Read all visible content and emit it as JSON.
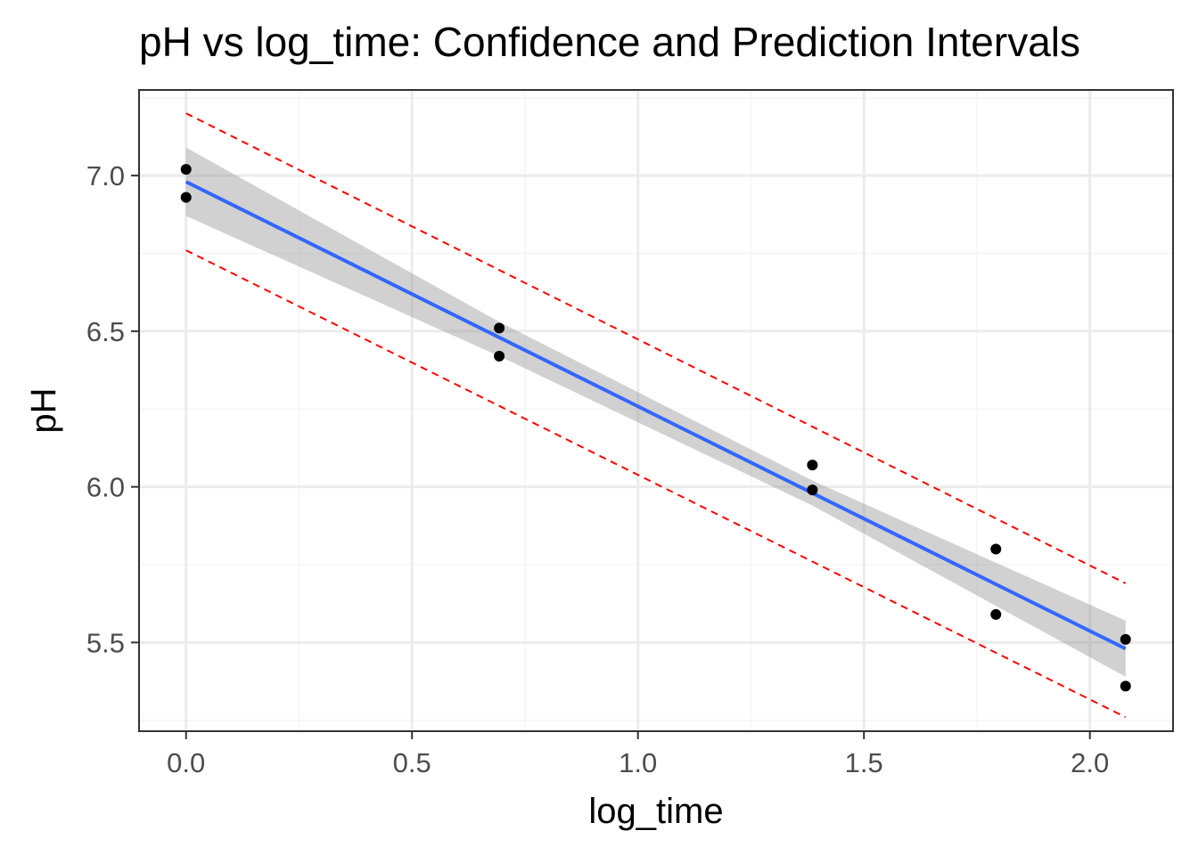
{
  "chart_data": {
    "type": "scatter",
    "title": "pH vs log_time: Confidence and Prediction Intervals",
    "xlabel": "log_time",
    "ylabel": "pH",
    "xlim": [
      -0.104,
      2.184
    ],
    "ylim": [
      5.215,
      7.275
    ],
    "x_ticks": [
      "0.0",
      "0.5",
      "1.0",
      "1.5",
      "2.0"
    ],
    "x_tick_values": [
      0,
      0.5,
      1.0,
      1.5,
      2.0
    ],
    "x_minor_values": [
      0.25,
      0.75,
      1.25,
      1.75
    ],
    "y_ticks": [
      "5.5",
      "6.0",
      "6.5",
      "7.0"
    ],
    "y_tick_values": [
      5.5,
      6.0,
      6.5,
      7.0
    ],
    "y_minor_values": [
      5.25,
      5.75,
      6.25,
      6.75,
      7.25
    ],
    "grid": true,
    "legend": "none",
    "points": {
      "x": [
        0.0,
        0.0,
        0.693,
        0.693,
        1.386,
        1.386,
        1.792,
        1.792,
        2.079,
        2.079
      ],
      "y": [
        7.02,
        6.93,
        6.51,
        6.42,
        6.07,
        5.99,
        5.8,
        5.59,
        5.51,
        5.36
      ]
    },
    "fit_line": {
      "x": [
        0.0,
        2.079
      ],
      "y": [
        6.98,
        5.48
      ]
    },
    "confidence_band": {
      "x": [
        0.0,
        0.693,
        1.386,
        2.079
      ],
      "lower": [
        6.87,
        6.42,
        5.94,
        5.39
      ],
      "upper": [
        7.09,
        6.53,
        6.02,
        5.57
      ]
    },
    "prediction_interval": {
      "x": [
        0.0,
        2.079
      ],
      "lower": [
        6.76,
        5.26
      ],
      "upper": [
        7.2,
        5.69
      ]
    },
    "colors": {
      "fit_line": "#3366ff",
      "confidence_band": "#999999",
      "prediction_interval": "#ff0000",
      "points": "#000000",
      "panel_border": "#333333",
      "grid_major": "#ebebeb",
      "grid_minor": "#f5f5f5"
    }
  }
}
